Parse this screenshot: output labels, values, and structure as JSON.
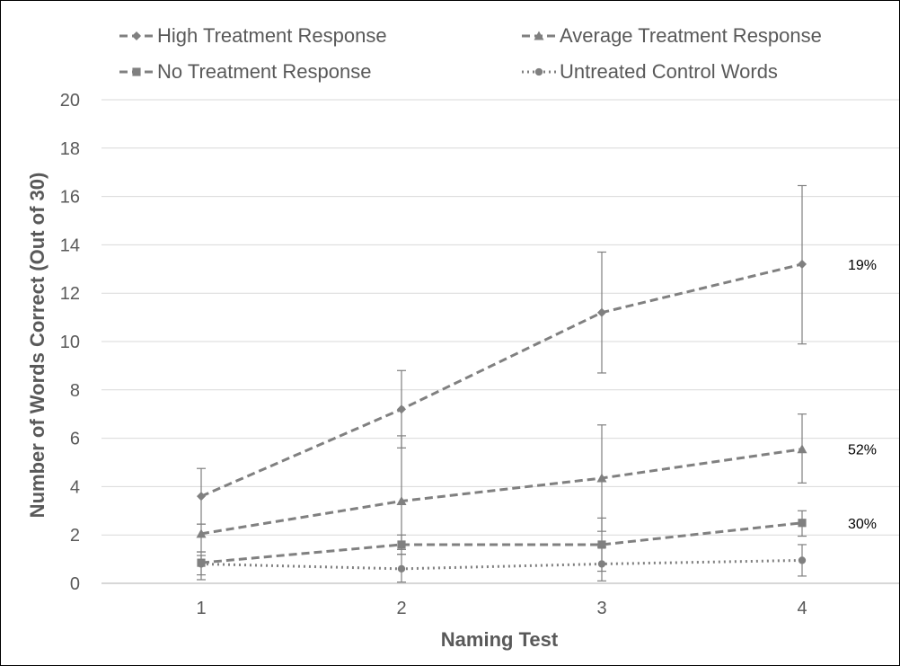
{
  "chart_data": {
    "type": "line",
    "title": "",
    "xlabel": "Naming Test",
    "ylabel": "Number of Words Correct (Out of 30)",
    "x": [
      1,
      2,
      3,
      4
    ],
    "x_tick_labels": [
      "1",
      "2",
      "3",
      "4"
    ],
    "ylim": [
      0,
      20
    ],
    "y_ticks": [
      0,
      2,
      4,
      6,
      8,
      10,
      12,
      14,
      16,
      18,
      20
    ],
    "y_tick_labels": [
      "0",
      "2",
      "4",
      "6",
      "8",
      "10",
      "12",
      "14",
      "16",
      "18",
      "20"
    ],
    "grid": "horizontal",
    "legend_position": "top",
    "series": [
      {
        "name": "High Treatment Response",
        "marker": "diamond",
        "line_style": "dashed",
        "values": [
          3.6,
          7.2,
          11.2,
          13.2
        ],
        "error_upper": [
          4.75,
          8.8,
          13.7,
          16.45
        ],
        "error_lower": [
          2.45,
          5.6,
          8.7,
          9.9
        ],
        "end_label": "19%"
      },
      {
        "name": "Average Treatment Response",
        "marker": "triangle",
        "line_style": "dashed",
        "values": [
          2.05,
          3.4,
          4.35,
          5.55
        ],
        "error_upper": [
          2.45,
          6.1,
          6.55,
          7.0
        ],
        "error_lower": [
          1.3,
          1.4,
          2.15,
          4.15
        ],
        "end_label": "52%"
      },
      {
        "name": "No Treatment Response",
        "marker": "square",
        "line_style": "dashed",
        "values": [
          0.85,
          1.6,
          1.6,
          2.5
        ],
        "error_upper": [
          1.3,
          2.0,
          2.7,
          3.0
        ],
        "error_lower": [
          0.35,
          1.2,
          0.5,
          1.95
        ],
        "end_label": "30%"
      },
      {
        "name": "Untreated Control Words",
        "marker": "circle",
        "line_style": "dotted",
        "values": [
          0.8,
          0.6,
          0.8,
          0.95
        ],
        "error_upper": [
          1.15,
          1.2,
          1.5,
          1.6
        ],
        "error_lower": [
          0.15,
          0.05,
          0.1,
          0.3
        ]
      }
    ],
    "colors": {
      "series": "#808080",
      "text": "#595959",
      "grid": "#d9d9d9",
      "error_bar": "#7f7f7f"
    }
  }
}
